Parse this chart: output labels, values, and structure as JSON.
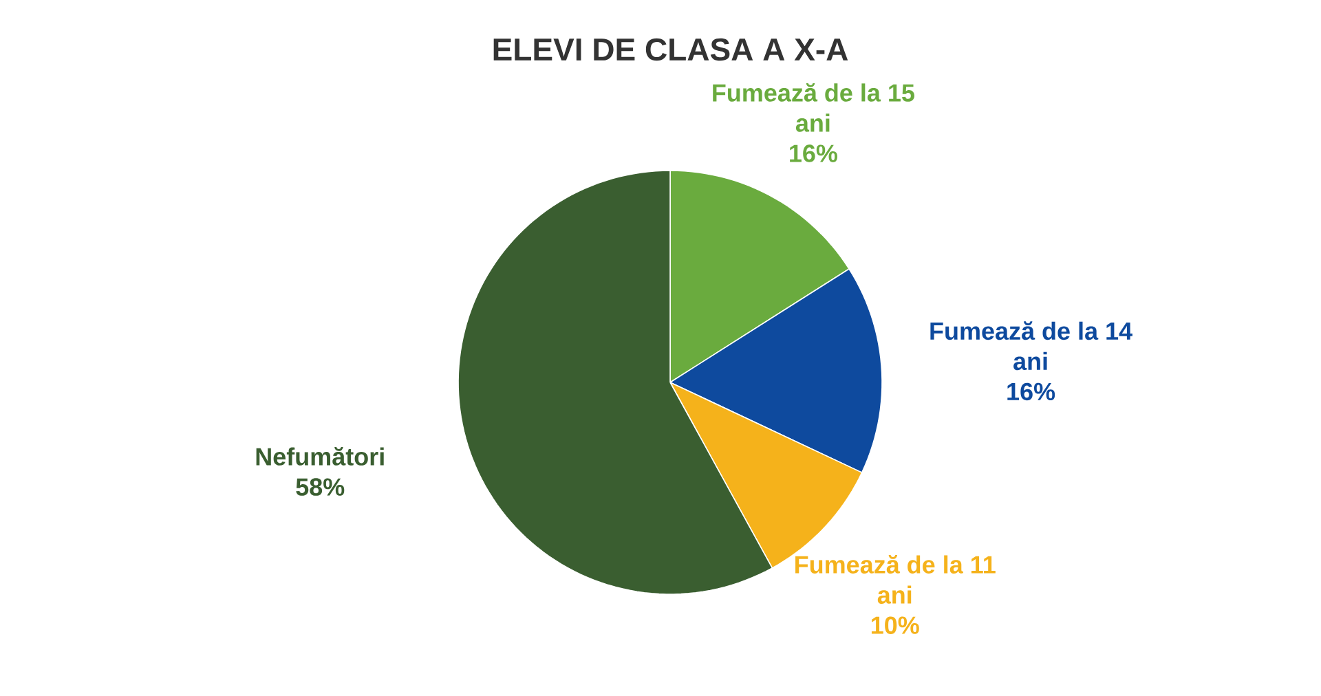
{
  "chart_data": {
    "type": "pie",
    "title": "ELEVI DE CLASA A X-A",
    "categories": [
      "Fumează de la 15 ani",
      "Fumează de la 14 ani",
      "Fumează de la 11 ani",
      "Nefumători"
    ],
    "values": [
      16,
      16,
      10,
      58
    ],
    "colors": [
      "#6aab3e",
      "#0e4a9e",
      "#f5b21b",
      "#3a5e30"
    ],
    "value_labels": [
      "16%",
      "16%",
      "10%",
      "58%"
    ]
  }
}
